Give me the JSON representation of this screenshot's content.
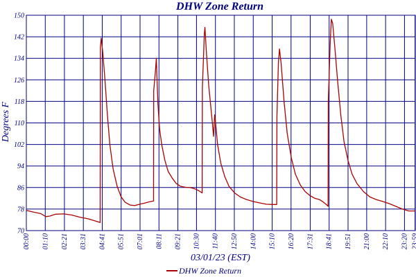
{
  "chart_data": {
    "type": "line",
    "title": "DHW Zone Return",
    "xlabel": "03/01/23 (EST)",
    "ylabel": "Degrees F",
    "ylim": [
      70,
      150
    ],
    "yticks": [
      "70",
      "78",
      "86",
      "94",
      "102",
      "110",
      "118",
      "126",
      "134",
      "142",
      "150"
    ],
    "xlim_hours": [
      0,
      24
    ],
    "xticks": [
      {
        "label": "00:00",
        "hour": 0.0
      },
      {
        "label": "01:10",
        "hour": 1.1667
      },
      {
        "label": "02:21",
        "hour": 2.35
      },
      {
        "label": "03:31",
        "hour": 3.5167
      },
      {
        "label": "04:41",
        "hour": 4.6833
      },
      {
        "label": "05:51",
        "hour": 5.85
      },
      {
        "label": "07:01",
        "hour": 7.0167
      },
      {
        "label": "08:11",
        "hour": 8.1833
      },
      {
        "label": "09:21",
        "hour": 9.35
      },
      {
        "label": "10:30",
        "hour": 10.5
      },
      {
        "label": "11:40",
        "hour": 11.6667
      },
      {
        "label": "12:50",
        "hour": 12.8333
      },
      {
        "label": "14:00",
        "hour": 14.0
      },
      {
        "label": "15:10",
        "hour": 15.1667
      },
      {
        "label": "16:20",
        "hour": 16.3333
      },
      {
        "label": "17:31",
        "hour": 17.5167
      },
      {
        "label": "18:41",
        "hour": 18.6833
      },
      {
        "label": "19:51",
        "hour": 19.85
      },
      {
        "label": "21:00",
        "hour": 21.0
      },
      {
        "label": "22:10",
        "hour": 22.1667
      },
      {
        "label": "23:20",
        "hour": 23.3333
      },
      {
        "label": "23:59",
        "hour": 23.9833
      }
    ],
    "grid": true,
    "legend_position": "bottom",
    "series": [
      {
        "name": "DHW Zone Return",
        "color": "#aa0000",
        "points": [
          [
            0.0,
            77.5
          ],
          [
            0.5,
            76.8
          ],
          [
            0.9,
            76.3
          ],
          [
            1.2,
            75.2
          ],
          [
            1.45,
            75.4
          ],
          [
            1.8,
            76.1
          ],
          [
            2.3,
            76.2
          ],
          [
            2.8,
            75.8
          ],
          [
            3.3,
            75.0
          ],
          [
            3.8,
            74.4
          ],
          [
            4.3,
            73.5
          ],
          [
            4.55,
            73.0
          ],
          [
            4.57,
            138.0
          ],
          [
            4.62,
            141.5
          ],
          [
            4.72,
            136.0
          ],
          [
            4.85,
            126.0
          ],
          [
            5.0,
            113.0
          ],
          [
            5.15,
            102.0
          ],
          [
            5.35,
            93.0
          ],
          [
            5.6,
            86.5
          ],
          [
            5.85,
            82.5
          ],
          [
            6.1,
            80.5
          ],
          [
            6.4,
            79.5
          ],
          [
            6.7,
            79.3
          ],
          [
            7.0,
            79.8
          ],
          [
            7.3,
            80.2
          ],
          [
            7.6,
            80.7
          ],
          [
            7.85,
            81.0
          ],
          [
            7.86,
            122.0
          ],
          [
            7.95,
            128.0
          ],
          [
            8.02,
            134.0
          ],
          [
            8.05,
            128.0
          ],
          [
            8.12,
            117.0
          ],
          [
            8.22,
            108.0
          ],
          [
            8.35,
            102.0
          ],
          [
            8.55,
            96.0
          ],
          [
            8.75,
            92.0
          ],
          [
            9.0,
            89.5
          ],
          [
            9.25,
            87.5
          ],
          [
            9.5,
            86.5
          ],
          [
            9.8,
            86.1
          ],
          [
            10.1,
            86.0
          ],
          [
            10.4,
            85.5
          ],
          [
            10.65,
            84.8
          ],
          [
            10.85,
            84.0
          ],
          [
            10.86,
            123.0
          ],
          [
            10.98,
            143.0
          ],
          [
            11.02,
            145.5
          ],
          [
            11.1,
            137.0
          ],
          [
            11.25,
            124.0
          ],
          [
            11.35,
            118.0
          ],
          [
            11.48,
            110.0
          ],
          [
            11.55,
            105.0
          ],
          [
            11.62,
            113.0
          ],
          [
            11.68,
            110.0
          ],
          [
            11.8,
            102.0
          ],
          [
            12.0,
            95.0
          ],
          [
            12.25,
            90.0
          ],
          [
            12.5,
            86.5
          ],
          [
            12.85,
            84.0
          ],
          [
            13.2,
            82.5
          ],
          [
            13.6,
            81.5
          ],
          [
            14.0,
            80.8
          ],
          [
            14.4,
            80.3
          ],
          [
            14.8,
            79.8
          ],
          [
            15.2,
            79.7
          ],
          [
            15.45,
            79.7
          ],
          [
            15.46,
            112.0
          ],
          [
            15.55,
            132.0
          ],
          [
            15.62,
            137.5
          ],
          [
            15.72,
            132.0
          ],
          [
            15.9,
            118.0
          ],
          [
            16.1,
            106.0
          ],
          [
            16.35,
            97.0
          ],
          [
            16.6,
            91.0
          ],
          [
            16.9,
            87.0
          ],
          [
            17.2,
            84.5
          ],
          [
            17.5,
            83.0
          ],
          [
            17.8,
            82.0
          ],
          [
            18.1,
            81.5
          ],
          [
            18.35,
            80.5
          ],
          [
            18.55,
            79.5
          ],
          [
            18.62,
            79.0
          ],
          [
            18.63,
            118.0
          ],
          [
            18.75,
            140.0
          ],
          [
            18.82,
            148.5
          ],
          [
            18.9,
            147.0
          ],
          [
            19.05,
            137.0
          ],
          [
            19.2,
            126.0
          ],
          [
            19.4,
            113.0
          ],
          [
            19.6,
            103.0
          ],
          [
            19.85,
            96.0
          ],
          [
            20.1,
            91.0
          ],
          [
            20.4,
            87.5
          ],
          [
            20.8,
            84.5
          ],
          [
            21.2,
            82.5
          ],
          [
            21.6,
            81.5
          ],
          [
            22.0,
            80.8
          ],
          [
            22.4,
            80.0
          ],
          [
            22.8,
            79.0
          ],
          [
            23.2,
            78.0
          ],
          [
            23.6,
            77.3
          ],
          [
            23.98,
            77.3
          ]
        ]
      }
    ]
  }
}
